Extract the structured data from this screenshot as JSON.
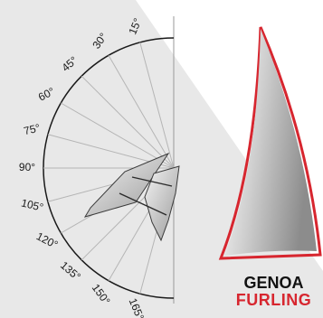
{
  "colors": {
    "background_band": "#e8e8e8",
    "sail_red": "#d7262f",
    "brand_dark": "#111111"
  },
  "angles": [
    {
      "label": "15°",
      "deg": 15
    },
    {
      "label": "30°",
      "deg": 30
    },
    {
      "label": "45°",
      "deg": 45
    },
    {
      "label": "60°",
      "deg": 60
    },
    {
      "label": "75°",
      "deg": 75
    },
    {
      "label": "90°",
      "deg": 90
    },
    {
      "label": "105°",
      "deg": 105
    },
    {
      "label": "120°",
      "deg": 120
    },
    {
      "label": "135°",
      "deg": 135
    },
    {
      "label": "150°",
      "deg": 150
    },
    {
      "label": "165°",
      "deg": 165
    }
  ],
  "brand": {
    "line1": "GENOA",
    "line2": "FURLING"
  }
}
